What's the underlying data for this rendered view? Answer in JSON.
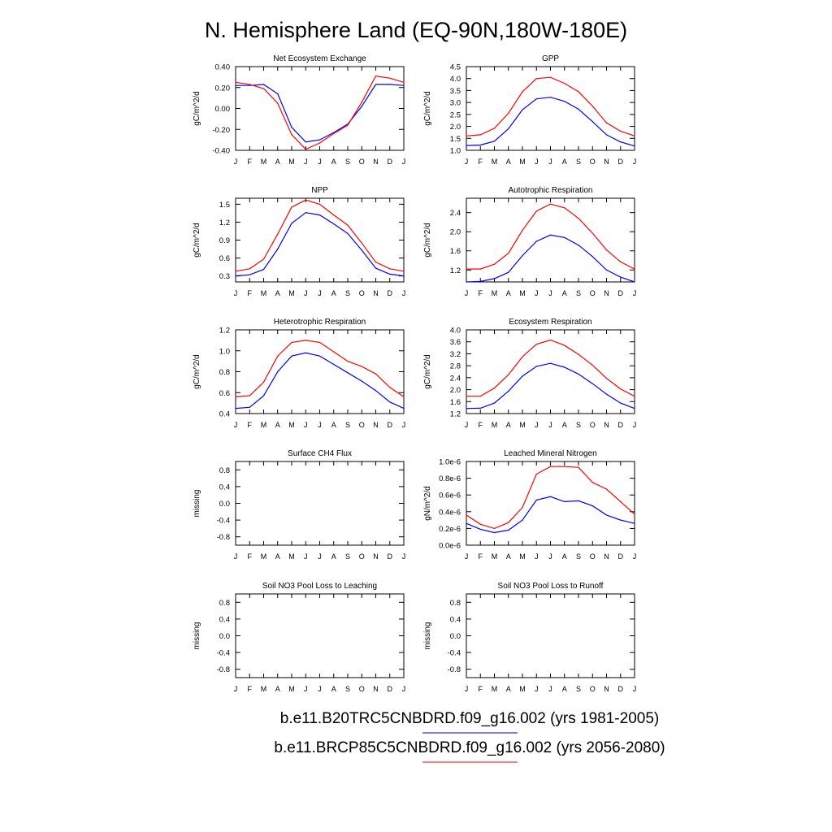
{
  "page_title": "N. Hemisphere Land (EQ-90N,180W-180E)",
  "month_labels": [
    "J",
    "F",
    "M",
    "A",
    "M",
    "J",
    "J",
    "A",
    "S",
    "O",
    "N",
    "D",
    "J"
  ],
  "colors": {
    "case1": "#0000ff",
    "case2": "#ff0000",
    "axis": "#000000"
  },
  "legend": [
    {
      "label": "b.e11.B20TRC5CNBDRD.f09_g16.002 (yrs 1981-2005)",
      "color": "#0000ff"
    },
    {
      "label": "b.e11.BRCP85C5CNBDRD.f09_g16.002 (yrs 2056-2080)",
      "color": "#ff0000"
    }
  ],
  "chart_data": [
    {
      "type": "line",
      "title": "Net Ecosystem Exchange",
      "ylabel": "gC/m^2/d",
      "ylim": [
        -0.4,
        0.4
      ],
      "yticks": [
        "0.40",
        "0.20",
        "0.00",
        "-0.20",
        "-0.40"
      ],
      "ytick_values": [
        0.4,
        0.2,
        0.0,
        -0.2,
        -0.4
      ],
      "x": [
        "J",
        "F",
        "M",
        "A",
        "M",
        "J",
        "J",
        "A",
        "S",
        "O",
        "N",
        "D",
        "J"
      ],
      "series": [
        {
          "values": [
            0.22,
            0.22,
            0.23,
            0.14,
            -0.18,
            -0.32,
            -0.3,
            -0.23,
            -0.15,
            0.02,
            0.23,
            0.23,
            0.22
          ]
        },
        {
          "values": [
            0.25,
            0.23,
            0.19,
            0.05,
            -0.25,
            -0.39,
            -0.33,
            -0.24,
            -0.16,
            0.06,
            0.31,
            0.29,
            0.25
          ]
        }
      ]
    },
    {
      "type": "line",
      "title": "GPP",
      "ylabel": "gC/m^2/d",
      "ylim": [
        1.0,
        4.5
      ],
      "yticks": [
        "4.5",
        "4.0",
        "3.5",
        "3.0",
        "2.5",
        "2.0",
        "1.5",
        "1.0"
      ],
      "ytick_values": [
        4.5,
        4.0,
        3.5,
        3.0,
        2.5,
        2.0,
        1.5,
        1.0
      ],
      "x": [
        "J",
        "F",
        "M",
        "A",
        "M",
        "J",
        "J",
        "A",
        "S",
        "O",
        "N",
        "D",
        "J"
      ],
      "series": [
        {
          "values": [
            1.2,
            1.22,
            1.38,
            1.9,
            2.7,
            3.15,
            3.22,
            3.05,
            2.72,
            2.2,
            1.65,
            1.35,
            1.18
          ]
        },
        {
          "values": [
            1.6,
            1.65,
            1.92,
            2.55,
            3.45,
            4.0,
            4.05,
            3.8,
            3.45,
            2.85,
            2.15,
            1.8,
            1.6
          ]
        }
      ]
    },
    {
      "type": "line",
      "title": "NPP",
      "ylabel": "gC/m^2/d",
      "ylim": [
        0.2,
        1.6
      ],
      "yticks": [
        "1.5",
        "1.2",
        "0.9",
        "0.6",
        "0.3"
      ],
      "ytick_values": [
        1.5,
        1.2,
        0.9,
        0.6,
        0.3
      ],
      "x": [
        "J",
        "F",
        "M",
        "A",
        "M",
        "J",
        "J",
        "A",
        "S",
        "O",
        "N",
        "D",
        "J"
      ],
      "series": [
        {
          "values": [
            0.3,
            0.32,
            0.41,
            0.75,
            1.18,
            1.36,
            1.32,
            1.17,
            1.01,
            0.73,
            0.43,
            0.33,
            0.3
          ]
        },
        {
          "values": [
            0.38,
            0.42,
            0.58,
            1.0,
            1.45,
            1.57,
            1.5,
            1.32,
            1.15,
            0.85,
            0.53,
            0.42,
            0.38
          ]
        }
      ]
    },
    {
      "type": "line",
      "title": "Autotrophic Respiration",
      "ylabel": "gC/m^2/d",
      "ylim": [
        0.95,
        2.7
      ],
      "yticks": [
        "2.4",
        "2.0",
        "1.6",
        "1.2"
      ],
      "ytick_values": [
        2.4,
        2.0,
        1.6,
        1.2
      ],
      "x": [
        "J",
        "F",
        "M",
        "A",
        "M",
        "J",
        "J",
        "A",
        "S",
        "O",
        "N",
        "D",
        "J"
      ],
      "series": [
        {
          "values": [
            0.95,
            0.96,
            1.02,
            1.15,
            1.5,
            1.8,
            1.93,
            1.88,
            1.72,
            1.48,
            1.2,
            1.05,
            0.95
          ]
        },
        {
          "values": [
            1.22,
            1.22,
            1.32,
            1.55,
            2.03,
            2.43,
            2.58,
            2.5,
            2.28,
            1.97,
            1.62,
            1.37,
            1.22
          ]
        }
      ]
    },
    {
      "type": "line",
      "title": "Heterotrophic Respiration",
      "ylabel": "gC/m^2/d",
      "ylim": [
        0.4,
        1.2
      ],
      "yticks": [
        "1.2",
        "1.0",
        "0.8",
        "0.6",
        "0.4"
      ],
      "ytick_values": [
        1.2,
        1.0,
        0.8,
        0.6,
        0.4
      ],
      "x": [
        "J",
        "F",
        "M",
        "A",
        "M",
        "J",
        "J",
        "A",
        "S",
        "O",
        "N",
        "D",
        "J"
      ],
      "series": [
        {
          "values": [
            0.45,
            0.46,
            0.57,
            0.8,
            0.95,
            0.98,
            0.95,
            0.87,
            0.79,
            0.71,
            0.62,
            0.51,
            0.45
          ]
        },
        {
          "values": [
            0.56,
            0.57,
            0.7,
            0.95,
            1.08,
            1.1,
            1.08,
            0.99,
            0.9,
            0.85,
            0.78,
            0.65,
            0.56
          ]
        }
      ]
    },
    {
      "type": "line",
      "title": "Ecosystem Respiration",
      "ylabel": "gC/m^2/d",
      "ylim": [
        1.2,
        4.0
      ],
      "yticks": [
        "4.0",
        "3.6",
        "3.2",
        "2.8",
        "2.4",
        "2.0",
        "1.6",
        "1.2"
      ],
      "ytick_values": [
        4.0,
        3.6,
        3.2,
        2.8,
        2.4,
        2.0,
        1.6,
        1.2
      ],
      "x": [
        "J",
        "F",
        "M",
        "A",
        "M",
        "J",
        "J",
        "A",
        "S",
        "O",
        "N",
        "D",
        "J"
      ],
      "series": [
        {
          "values": [
            1.37,
            1.38,
            1.55,
            1.95,
            2.45,
            2.78,
            2.88,
            2.75,
            2.52,
            2.2,
            1.85,
            1.55,
            1.37
          ]
        },
        {
          "values": [
            1.78,
            1.78,
            2.05,
            2.5,
            3.1,
            3.52,
            3.66,
            3.48,
            3.18,
            2.82,
            2.38,
            2.02,
            1.78
          ]
        }
      ]
    },
    {
      "type": "line",
      "title": "Surface CH4 Flux",
      "ylabel": "missing",
      "ylim": [
        -1.0,
        1.0
      ],
      "yticks": [
        "0.8",
        "0.4",
        "0.0",
        "-0.4",
        "-0.8"
      ],
      "ytick_values": [
        0.8,
        0.4,
        0.0,
        -0.4,
        -0.8
      ],
      "x": [
        "J",
        "F",
        "M",
        "A",
        "M",
        "J",
        "J",
        "A",
        "S",
        "O",
        "N",
        "D",
        "J"
      ],
      "series": []
    },
    {
      "type": "line",
      "title": "Leached Mineral Nitrogen",
      "ylabel": "gN/m^2/d",
      "ylim": [
        0.0,
        1.0
      ],
      "yticks": [
        "1.0e-6",
        "0.8e-6",
        "0.6e-6",
        "0.4e-6",
        "0.2e-6",
        "0.0e-6"
      ],
      "ytick_values": [
        1.0,
        0.8,
        0.6,
        0.4,
        0.2,
        0.0
      ],
      "x": [
        "J",
        "F",
        "M",
        "A",
        "M",
        "J",
        "J",
        "A",
        "S",
        "O",
        "N",
        "D",
        "J"
      ],
      "series": [
        {
          "values": [
            0.26,
            0.19,
            0.15,
            0.18,
            0.3,
            0.54,
            0.58,
            0.52,
            0.53,
            0.47,
            0.36,
            0.3,
            0.26
          ]
        },
        {
          "values": [
            0.36,
            0.25,
            0.2,
            0.27,
            0.45,
            0.85,
            0.94,
            0.94,
            0.93,
            0.75,
            0.67,
            0.52,
            0.37
          ]
        }
      ]
    },
    {
      "type": "line",
      "title": "Soil NO3 Pool Loss to Leaching",
      "ylabel": "missing",
      "ylim": [
        -1.0,
        1.0
      ],
      "yticks": [
        "0.8",
        "0.4",
        "0.0",
        "-0.4",
        "-0.8"
      ],
      "ytick_values": [
        0.8,
        0.4,
        0.0,
        -0.4,
        -0.8
      ],
      "x": [
        "J",
        "F",
        "M",
        "A",
        "M",
        "J",
        "J",
        "A",
        "S",
        "O",
        "N",
        "D",
        "J"
      ],
      "series": []
    },
    {
      "type": "line",
      "title": "Soil NO3 Pool Loss to Runoff",
      "ylabel": "missing",
      "ylim": [
        -1.0,
        1.0
      ],
      "yticks": [
        "0.8",
        "0.4",
        "0.0",
        "-0.4",
        "-0.8"
      ],
      "ytick_values": [
        0.8,
        0.4,
        0.0,
        -0.4,
        -0.8
      ],
      "x": [
        "J",
        "F",
        "M",
        "A",
        "M",
        "J",
        "J",
        "A",
        "S",
        "O",
        "N",
        "D",
        "J"
      ],
      "series": []
    }
  ]
}
